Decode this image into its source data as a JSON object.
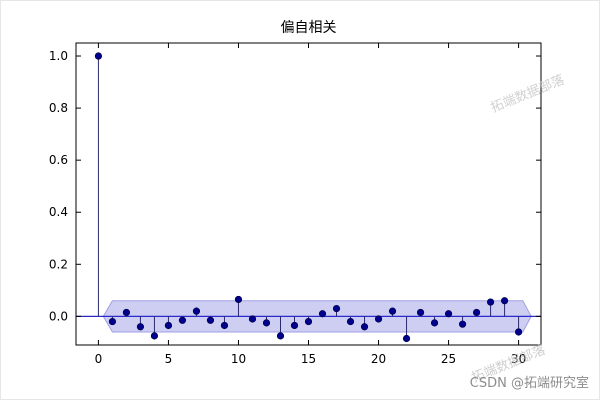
{
  "title": "偏自相关",
  "watermarks": {
    "csdn": "CSDN @拓端研究室",
    "diagonal": "拓端数据部落"
  },
  "chart_data": {
    "type": "scatter",
    "subtype": "stem-pacf",
    "title": "偏自相关",
    "xlabel": "",
    "ylabel": "",
    "x": [
      0,
      1,
      2,
      3,
      4,
      5,
      6,
      7,
      8,
      9,
      10,
      11,
      12,
      13,
      14,
      15,
      16,
      17,
      18,
      19,
      20,
      21,
      22,
      23,
      24,
      25,
      26,
      27,
      28,
      29,
      30
    ],
    "values": [
      1.0,
      -0.02,
      0.015,
      -0.04,
      -0.075,
      -0.035,
      -0.015,
      0.02,
      -0.015,
      -0.035,
      0.065,
      -0.01,
      -0.025,
      -0.075,
      -0.035,
      -0.02,
      0.01,
      0.03,
      -0.02,
      -0.04,
      -0.01,
      0.02,
      -0.085,
      0.015,
      -0.025,
      0.01,
      -0.03,
      0.015,
      0.055,
      0.06,
      -0.06
    ],
    "confidence_band": {
      "low": -0.06,
      "high": 0.06,
      "x_tip_left": 0.35,
      "x_full_start": 1.0,
      "x_full_end": 30.3,
      "x_tip_right": 30.9
    },
    "xlim": [
      -1.6,
      31.6
    ],
    "ylim": [
      -0.11,
      1.05
    ],
    "xticks": {
      "values": [
        0,
        5,
        10,
        15,
        20,
        25,
        30
      ],
      "labels": [
        "0",
        "5",
        "10",
        "15",
        "20",
        "25",
        "30"
      ]
    },
    "yticks": {
      "values": [
        0.0,
        0.2,
        0.4,
        0.6,
        0.8,
        1.0
      ],
      "labels": [
        "0.0",
        "0.2",
        "0.4",
        "0.6",
        "0.8",
        "1.0"
      ]
    },
    "grid": false,
    "legend": "none",
    "colors": {
      "marker": "#00008b",
      "marker_edge": "#000040",
      "stem": "#2a2a6e",
      "zero_line": "#2b2bcc",
      "band_fill": "#c9c9f2",
      "band_edge": "#9595e0",
      "frame": "#000000",
      "tick_label": "#000000"
    }
  }
}
